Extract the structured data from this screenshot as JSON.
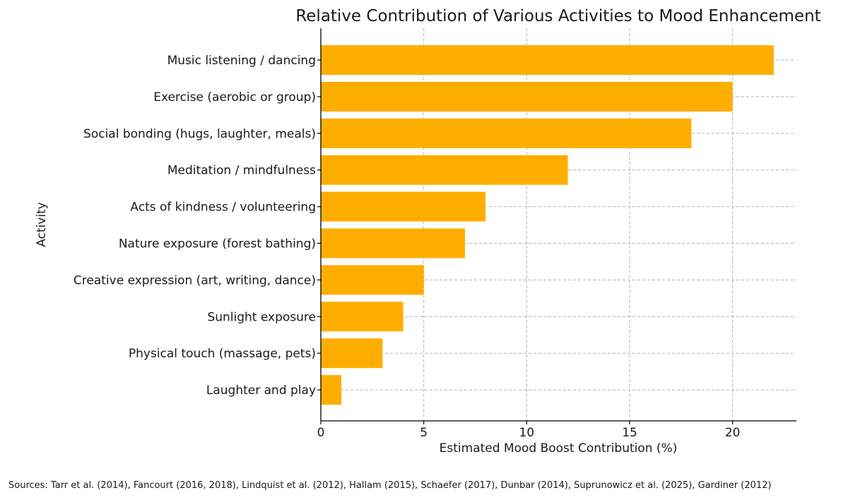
{
  "chart_data": {
    "type": "bar",
    "orientation": "horizontal",
    "title": "Relative Contribution of Various Activities to Mood Enhancement",
    "xlabel": "Estimated Mood Boost Contribution (%)",
    "ylabel": "Activity",
    "xlim": [
      0,
      23.1
    ],
    "xticks": [
      0,
      5,
      10,
      15,
      20
    ],
    "grid": true,
    "bar_color": "#FFAE00",
    "categories": [
      "Music listening / dancing",
      "Exercise (aerobic or group)",
      "Social bonding (hugs, laughter, meals)",
      "Meditation / mindfulness",
      "Acts of kindness / volunteering",
      "Nature exposure (forest bathing)",
      "Creative expression (art, writing, dance)",
      "Sunlight exposure",
      "Physical touch (massage, pets)",
      "Laughter and play"
    ],
    "values": [
      22,
      20,
      18,
      12,
      8,
      7,
      5,
      4,
      3,
      1
    ]
  },
  "footer": {
    "sources": "Sources: Tarr et al. (2014), Fancourt (2016, 2018), Lindquist et al. (2012), Hallam (2015), Schaefer (2017), Dunbar (2014), Suprunowicz et al. (2025), Gardiner (2012)"
  }
}
